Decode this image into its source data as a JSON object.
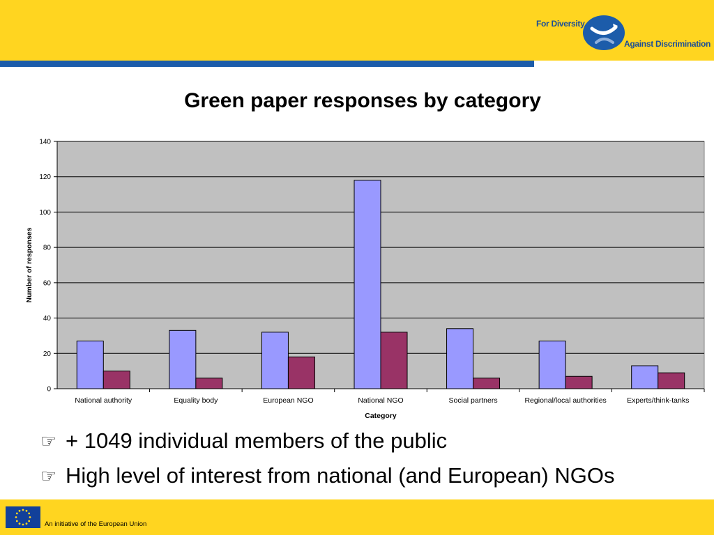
{
  "header": {
    "logo_line1": "For Diversity",
    "logo_line2": "Against Discrimination",
    "band_color": "#FFD520",
    "stripe_color": "#1C5CAA"
  },
  "slide": {
    "title": "Green paper responses by category"
  },
  "chart_data": {
    "type": "bar",
    "title": "",
    "xlabel": "Category",
    "ylabel": "Number of responses",
    "ylim": [
      0,
      140
    ],
    "yticks": [
      0,
      20,
      40,
      60,
      80,
      100,
      120,
      140
    ],
    "grid": true,
    "legend": "none",
    "categories": [
      "National authority",
      "Equality body",
      "European NGO",
      "National NGO",
      "Social partners",
      "Regional/local authorities",
      "Experts/think-tanks"
    ],
    "series": [
      {
        "color": "#9999FF",
        "values": [
          27,
          33,
          32,
          118,
          34,
          27,
          13
        ]
      },
      {
        "color": "#993366",
        "values": [
          10,
          6,
          18,
          32,
          6,
          7,
          9
        ]
      }
    ],
    "plot_background": "#C0C0C0"
  },
  "bullets": [
    {
      "icon": "pointing-hand-icon",
      "text": "+ 1049 individual members of the public"
    },
    {
      "icon": "pointing-hand-icon",
      "text": "High level of interest from national (and European) NGOs"
    }
  ],
  "footer": {
    "caption": "An initiative of the European Union",
    "flag": "eu-flag-icon"
  }
}
